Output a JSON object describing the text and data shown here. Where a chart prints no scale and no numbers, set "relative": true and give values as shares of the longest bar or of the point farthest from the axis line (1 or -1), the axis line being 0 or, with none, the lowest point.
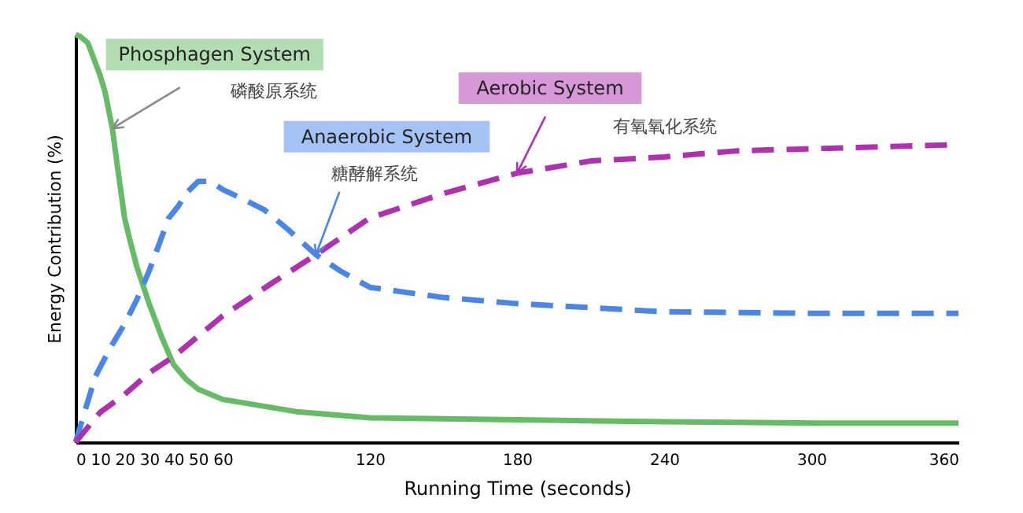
{
  "chart_data": {
    "type": "line",
    "relative": true,
    "xlabel": "Running Time (seconds)",
    "ylabel": "Energy Contribution (%)",
    "xlim": [
      0,
      360
    ],
    "xticks": [
      0,
      10,
      20,
      30,
      40,
      50,
      60,
      120,
      180,
      240,
      300,
      360
    ],
    "tick_labels": "x",
    "grid": false,
    "series": [
      {
        "name": "Phosphagen System",
        "color": "#66bb66",
        "line_style": "solid",
        "x": [
          0,
          2,
          5,
          10,
          12,
          15,
          17,
          20,
          22,
          25,
          30,
          35,
          40,
          45,
          50,
          60,
          75,
          90,
          120,
          180,
          240,
          300,
          360
        ],
        "values": [
          1.0,
          0.995,
          0.98,
          0.9,
          0.86,
          0.77,
          0.68,
          0.55,
          0.5,
          0.43,
          0.34,
          0.26,
          0.19,
          0.155,
          0.13,
          0.105,
          0.09,
          0.075,
          0.06,
          0.055,
          0.05,
          0.047,
          0.047
        ]
      },
      {
        "name": "Anaerobic System",
        "color": "#4a86e8",
        "line_style": "dashed",
        "x": [
          0,
          3,
          8,
          14,
          20,
          25,
          30,
          38,
          42,
          45,
          50,
          55,
          60,
          67,
          77,
          87,
          98,
          108,
          120,
          150,
          180,
          240,
          300,
          360
        ],
        "values": [
          0,
          0.06,
          0.16,
          0.23,
          0.29,
          0.35,
          0.42,
          0.55,
          0.58,
          0.61,
          0.64,
          0.64,
          0.62,
          0.6,
          0.57,
          0.52,
          0.46,
          0.42,
          0.38,
          0.355,
          0.34,
          0.32,
          0.316,
          0.316
        ]
      },
      {
        "name": "Aerobic System",
        "color": "#b031b0",
        "line_style": "dashed",
        "x": [
          0,
          10,
          20,
          30,
          40,
          50,
          60,
          80,
          98,
          120,
          150,
          180,
          210,
          240,
          270,
          300,
          360
        ],
        "values": [
          0,
          0.073,
          0.117,
          0.17,
          0.21,
          0.26,
          0.31,
          0.39,
          0.46,
          0.55,
          0.61,
          0.66,
          0.69,
          0.7,
          0.715,
          0.72,
          0.73
        ]
      }
    ],
    "annotations": [
      "磷酸原系统",
      "糖酵解系统",
      "有氧氧化系统"
    ]
  }
}
